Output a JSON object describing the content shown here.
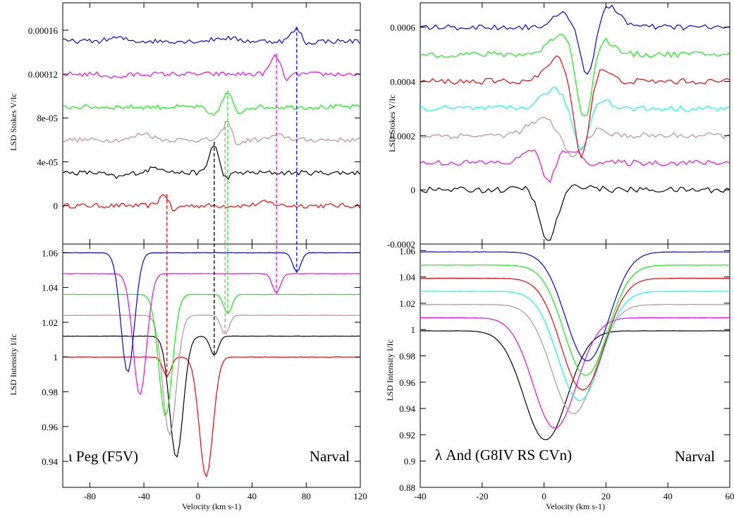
{
  "chart_data": [
    {
      "id": "left-top",
      "type": "line",
      "title": "",
      "xlabel": "",
      "ylabel": "LSD Stokes V/Ic",
      "xlim": [
        -100,
        120
      ],
      "ylim": [
        -3.5e-05,
        0.000185
      ],
      "yticks": [
        0,
        4e-05,
        8e-05,
        0.00012,
        0.00016
      ],
      "ytick_labels": [
        "0",
        "4e-05",
        "8e-05",
        "0.00012",
        "0.00016"
      ],
      "grid": false,
      "series": [
        {
          "color": "#ff0000",
          "baseline": 0,
          "features": [
            [
              -24,
              1.2e-05,
              4
            ],
            [
              -19,
              -9e-06,
              3
            ],
            [
              50,
              3e-06,
              6
            ]
          ]
        },
        {
          "color": "#000000",
          "baseline": 3e-05,
          "features": [
            [
              -60,
              -4e-06,
              6
            ],
            [
              -30,
              5e-06,
              6
            ],
            [
              12,
              2.7e-05,
              3.5
            ],
            [
              19,
              -6e-06,
              4
            ]
          ]
        },
        {
          "color": "#bc8f8f",
          "baseline": 6e-05,
          "features": [
            [
              -40,
              6e-06,
              6
            ],
            [
              22,
              1.8e-05,
              3.5
            ],
            [
              28,
              -6e-06,
              4
            ],
            [
              60,
              4e-06,
              6
            ]
          ]
        },
        {
          "color": "#00ff00",
          "baseline": 9e-05,
          "features": [
            [
              10,
              -8e-06,
              3.5
            ],
            [
              22,
              1.3e-05,
              3
            ],
            [
              30,
              -6e-06,
              3
            ]
          ]
        },
        {
          "color": "#ff00ff",
          "baseline": 0.00012,
          "features": [
            [
              -60,
              -3e-06,
              6
            ],
            [
              58,
              1.8e-05,
              4
            ],
            [
              64,
              -8e-06,
              3.5
            ]
          ]
        },
        {
          "color": "#0000ff",
          "baseline": 0.00015,
          "features": [
            [
              -60,
              3e-06,
              6
            ],
            [
              20,
              3e-06,
              8
            ],
            [
              73,
              1.1e-05,
              4
            ],
            [
              80,
              -4e-06,
              3
            ]
          ]
        }
      ]
    },
    {
      "id": "left-bottom",
      "type": "line",
      "title": "",
      "xlabel": "Velocity (km s-1)",
      "ylabel": "LSD Intensity I/Ic",
      "xlim": [
        -100,
        120
      ],
      "ylim": [
        0.925,
        1.065
      ],
      "xticks": [
        -80,
        -40,
        0,
        40,
        80,
        120
      ],
      "xtick_labels": [
        "-80",
        "-40",
        "0",
        "40",
        "80",
        "120"
      ],
      "yticks": [
        0.94,
        0.96,
        0.98,
        1.0,
        1.02,
        1.04,
        1.06
      ],
      "ytick_labels": [
        "0.94",
        "0.96",
        "0.98",
        "1",
        "1.02",
        "1.04",
        "1.06"
      ],
      "annotations": [
        "ι Peg (F5V)",
        "Narval"
      ],
      "grid": false,
      "series": [
        {
          "color": "#ff0000",
          "continuum": 1.0,
          "absorptions": [
            [
              6,
              0.069,
              5
            ],
            [
              -23,
              0.011,
              3
            ]
          ]
        },
        {
          "color": "#000000",
          "continuum": 1.012,
          "absorptions": [
            [
              -16,
              0.07,
              5
            ],
            [
              12,
              0.011,
              3
            ]
          ]
        },
        {
          "color": "#bc8f8f",
          "continuum": 1.024,
          "absorptions": [
            [
              -21,
              0.069,
              5
            ],
            [
              20,
              0.011,
              3
            ]
          ]
        },
        {
          "color": "#00ff00",
          "continuum": 1.036,
          "absorptions": [
            [
              -24,
              0.07,
              5
            ],
            [
              22,
              0.011,
              3
            ]
          ]
        },
        {
          "color": "#ff00ff",
          "continuum": 1.048,
          "absorptions": [
            [
              -43,
              0.07,
              5
            ],
            [
              58,
              0.011,
              3
            ]
          ]
        },
        {
          "color": "#0000ff",
          "continuum": 1.06,
          "absorptions": [
            [
              -52,
              0.069,
              5
            ],
            [
              73,
              0.011,
              3
            ]
          ]
        }
      ],
      "markers": [
        {
          "x": -23,
          "color": "#ff0000"
        },
        {
          "x": 12,
          "color": "#000000"
        },
        {
          "x": 20,
          "color": "#bc8f8f"
        },
        {
          "x": 22,
          "color": "#00ff00"
        },
        {
          "x": 58,
          "color": "#ff00ff"
        },
        {
          "x": 73,
          "color": "#0000ff"
        }
      ]
    },
    {
      "id": "right-top",
      "type": "line",
      "title": "",
      "xlabel": "",
      "ylabel": "LSD Stokes V/Ic",
      "xlim": [
        -40,
        60
      ],
      "ylim": [
        -0.0002,
        0.00069
      ],
      "yticks": [
        -0.0002,
        0,
        0.0002,
        0.0004,
        0.0006
      ],
      "ytick_labels": [
        "-0.0002",
        "0",
        "0.0002",
        "0.0004",
        "0.0006"
      ],
      "grid": false,
      "series": [
        {
          "color": "#000000",
          "baseline": 0,
          "features": [
            [
              -3,
              3e-05,
              3
            ],
            [
              1,
              -0.0002,
              3
            ],
            [
              12,
              1.5e-05,
              4
            ]
          ]
        },
        {
          "color": "#ff00ff",
          "baseline": 0.0001,
          "features": [
            [
              -3,
              7e-05,
              3
            ],
            [
              1,
              -0.0001,
              2.5
            ],
            [
              6,
              4.5e-05,
              2.5
            ],
            [
              10,
              3e-05,
              2
            ]
          ]
        },
        {
          "color": "#bc8f8f",
          "baseline": 0.0002,
          "features": [
            [
              0,
              6e-05,
              5
            ],
            [
              9,
              -9e-05,
              3
            ],
            [
              17,
              2e-05,
              3
            ]
          ]
        },
        {
          "color": "#00ffff",
          "baseline": 0.0003,
          "features": [
            [
              3,
              7e-05,
              4
            ],
            [
              12,
              -0.00016,
              2.5
            ],
            [
              18,
              4e-05,
              3
            ]
          ]
        },
        {
          "color": "#ff0000",
          "baseline": 0.0004,
          "features": [
            [
              5,
              9e-05,
              4
            ],
            [
              12,
              -0.0003,
              2.5
            ],
            [
              18,
              5e-05,
              3
            ]
          ]
        },
        {
          "color": "#00ff00",
          "baseline": 0.0005,
          "features": [
            [
              6,
              8e-05,
              4
            ],
            [
              13,
              -0.00026,
              2.5
            ],
            [
              19,
              6e-05,
              3
            ]
          ]
        },
        {
          "color": "#0000ff",
          "baseline": 0.0006,
          "features": [
            [
              7,
              5e-05,
              4
            ],
            [
              14,
              -0.00019,
              2.5
            ],
            [
              21,
              8e-05,
              3.5
            ]
          ]
        }
      ]
    },
    {
      "id": "right-bottom",
      "type": "line",
      "title": "",
      "xlabel": "Velocity (km s-1)",
      "ylabel": "LSD Intensity I/Ic",
      "xlim": [
        -40,
        60
      ],
      "ylim": [
        0.88,
        1.065
      ],
      "xticks": [
        -40,
        -20,
        0,
        20,
        40,
        60
      ],
      "xtick_labels": [
        "-40",
        "-20",
        "0",
        "20",
        "40",
        "60"
      ],
      "yticks": [
        0.88,
        0.9,
        0.92,
        0.94,
        0.96,
        0.98,
        1.0,
        1.02,
        1.04,
        1.06
      ],
      "ytick_labels": [
        "0.88",
        "0.9",
        "0.92",
        "0.94",
        "0.96",
        "0.98",
        "1",
        "1.02",
        "1.04",
        "1.06"
      ],
      "annotations": [
        "λ And (G8IV RS CVn)",
        "Narval"
      ],
      "grid": false,
      "series": [
        {
          "color": "#000000",
          "continuum": 0.999,
          "center": 0.5,
          "depth": 0.083,
          "width": 7
        },
        {
          "color": "#ff00ff",
          "continuum": 1.009,
          "center": 3.5,
          "depth": 0.084,
          "width": 7
        },
        {
          "color": "#bc8f8f",
          "continuum": 1.019,
          "center": 9.5,
          "depth": 0.083,
          "width": 7
        },
        {
          "color": "#00ffff",
          "continuum": 1.029,
          "center": 11.5,
          "depth": 0.083,
          "width": 7
        },
        {
          "color": "#ff0000",
          "continuum": 1.039,
          "center": 12.5,
          "depth": 0.085,
          "width": 7
        },
        {
          "color": "#00ff00",
          "continuum": 1.049,
          "center": 13.5,
          "depth": 0.084,
          "width": 7
        },
        {
          "color": "#0000ff",
          "continuum": 1.059,
          "center": 14,
          "depth": 0.083,
          "width": 7
        }
      ]
    }
  ]
}
